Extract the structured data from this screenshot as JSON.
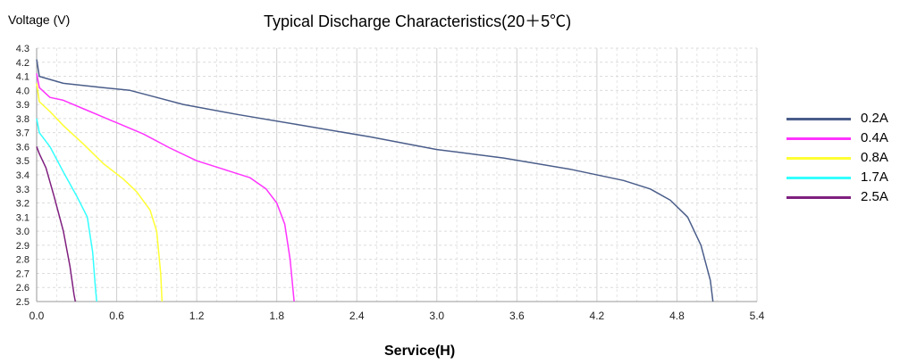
{
  "chart_data": {
    "type": "line",
    "title": "Typical Discharge Characteristics(20＋5℃)",
    "ylabel": "Voltage (V)",
    "xlabel": "Service(H)",
    "xlim": [
      0,
      5.4
    ],
    "ylim": [
      2.5,
      4.3
    ],
    "x_ticks": [
      "0.0",
      "0.6",
      "1.2",
      "1.8",
      "2.4",
      "3.0",
      "3.6",
      "4.2",
      "4.8",
      "5.4"
    ],
    "y_ticks": [
      "2.5",
      "2.6",
      "2.7",
      "2.8",
      "2.9",
      "3.0",
      "3.1",
      "3.2",
      "3.3",
      "3.4",
      "3.5",
      "3.6",
      "3.7",
      "3.8",
      "3.9",
      "4.0",
      "4.1",
      "4.2",
      "4.3"
    ],
    "grid": true,
    "legend_position": "right",
    "series": [
      {
        "name": "0.2A",
        "color": "#4a5d8a",
        "points": [
          [
            0,
            4.22
          ],
          [
            0.02,
            4.1
          ],
          [
            0.2,
            4.05
          ],
          [
            0.5,
            4.02
          ],
          [
            0.7,
            4.0
          ],
          [
            0.9,
            3.95
          ],
          [
            1.1,
            3.9
          ],
          [
            1.5,
            3.83
          ],
          [
            2.0,
            3.75
          ],
          [
            2.5,
            3.67
          ],
          [
            3.0,
            3.58
          ],
          [
            3.5,
            3.52
          ],
          [
            4.0,
            3.44
          ],
          [
            4.4,
            3.36
          ],
          [
            4.6,
            3.3
          ],
          [
            4.75,
            3.22
          ],
          [
            4.88,
            3.1
          ],
          [
            4.98,
            2.9
          ],
          [
            5.05,
            2.65
          ],
          [
            5.07,
            2.5
          ]
        ]
      },
      {
        "name": "0.4A",
        "color": "#ff33ff",
        "points": [
          [
            0,
            4.12
          ],
          [
            0.02,
            4.02
          ],
          [
            0.1,
            3.95
          ],
          [
            0.2,
            3.93
          ],
          [
            0.4,
            3.85
          ],
          [
            0.6,
            3.77
          ],
          [
            0.8,
            3.69
          ],
          [
            1.0,
            3.59
          ],
          [
            1.2,
            3.5
          ],
          [
            1.4,
            3.44
          ],
          [
            1.6,
            3.38
          ],
          [
            1.72,
            3.3
          ],
          [
            1.8,
            3.2
          ],
          [
            1.86,
            3.05
          ],
          [
            1.9,
            2.8
          ],
          [
            1.92,
            2.6
          ],
          [
            1.93,
            2.5
          ]
        ]
      },
      {
        "name": "0.8A",
        "color": "#ffff33",
        "points": [
          [
            0,
            4.05
          ],
          [
            0.02,
            3.92
          ],
          [
            0.1,
            3.85
          ],
          [
            0.2,
            3.75
          ],
          [
            0.35,
            3.62
          ],
          [
            0.5,
            3.48
          ],
          [
            0.65,
            3.37
          ],
          [
            0.75,
            3.28
          ],
          [
            0.85,
            3.15
          ],
          [
            0.9,
            3.0
          ],
          [
            0.93,
            2.7
          ],
          [
            0.94,
            2.5
          ]
        ]
      },
      {
        "name": "1.7A",
        "color": "#33ffff",
        "points": [
          [
            0,
            3.8
          ],
          [
            0.02,
            3.7
          ],
          [
            0.1,
            3.6
          ],
          [
            0.2,
            3.42
          ],
          [
            0.3,
            3.25
          ],
          [
            0.38,
            3.1
          ],
          [
            0.42,
            2.85
          ],
          [
            0.44,
            2.6
          ],
          [
            0.45,
            2.5
          ]
        ]
      },
      {
        "name": "2.5A",
        "color": "#7f1f7f",
        "points": [
          [
            0,
            3.6
          ],
          [
            0.02,
            3.55
          ],
          [
            0.07,
            3.45
          ],
          [
            0.13,
            3.25
          ],
          [
            0.2,
            3.0
          ],
          [
            0.25,
            2.75
          ],
          [
            0.28,
            2.55
          ],
          [
            0.29,
            2.5
          ]
        ]
      }
    ]
  }
}
